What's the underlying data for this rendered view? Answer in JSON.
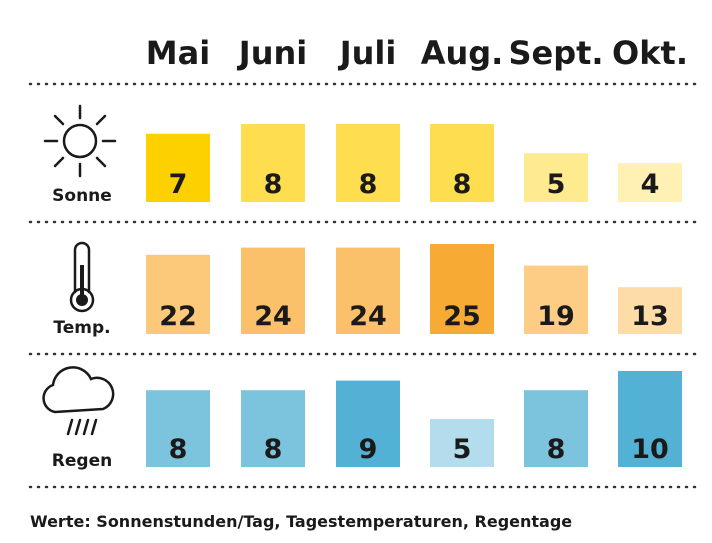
{
  "chart_data": [
    {
      "type": "bar",
      "label": "Sonne",
      "categories": [
        "Mai",
        "Juni",
        "Juli",
        "Aug.",
        "Sept.",
        "Okt."
      ],
      "values": [
        7,
        8,
        8,
        8,
        5,
        4
      ],
      "colors": [
        "#fdd000",
        "#fedd4f",
        "#fedd4f",
        "#fedd4f",
        "#feea8f",
        "#fef1b3"
      ]
    },
    {
      "type": "bar",
      "label": "Temp.",
      "values": [
        22,
        24,
        24,
        25,
        19,
        13
      ],
      "colors": [
        "#fcc97a",
        "#fbc06a",
        "#fbc06a",
        "#f7ab35",
        "#fdcc85",
        "#fedca8"
      ]
    },
    {
      "type": "bar",
      "label": "Regen",
      "values": [
        8,
        8,
        9,
        5,
        8,
        10
      ],
      "colors": [
        "#7cc3de",
        "#7cc3de",
        "#52b1d4",
        "#b3dcec",
        "#7cc3de",
        "#52b1d4"
      ]
    }
  ],
  "footnote": "Werte: Sonnenstunden/Tag, Tagestemperaturen, Regentage"
}
